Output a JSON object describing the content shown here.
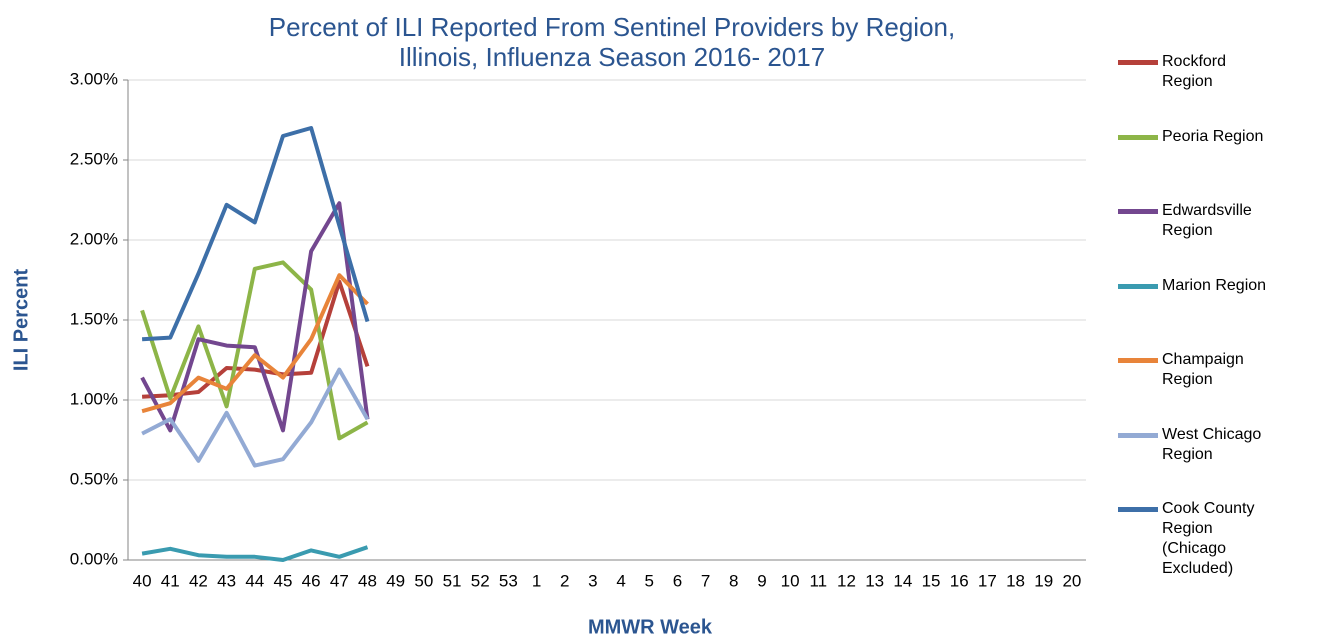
{
  "chart_data": {
    "type": "line",
    "title": "Percent of ILI Reported From Sentinel Providers by Region, Illinois, Influenza Season 2016- 2017",
    "x_label": "MMWR Week",
    "y_label": "ILI Percent",
    "categories": [
      40,
      41,
      42,
      43,
      44,
      45,
      46,
      47,
      48,
      49,
      50,
      51,
      52,
      53,
      1,
      2,
      3,
      4,
      5,
      6,
      7,
      8,
      9,
      10,
      11,
      12,
      13,
      14,
      15,
      16,
      17,
      18,
      19,
      20
    ],
    "ylim": [
      0,
      3
    ],
    "yticks": [
      {
        "value": 0,
        "label": "0.00%"
      },
      {
        "value": 0.5,
        "label": "0.50%"
      },
      {
        "value": 1,
        "label": "1.00%"
      },
      {
        "value": 1.5,
        "label": "1.50%"
      },
      {
        "value": 2,
        "label": "2.00%"
      },
      {
        "value": 2.5,
        "label": "2.50%"
      },
      {
        "value": 3,
        "label": "3.00%"
      }
    ],
    "grid": true,
    "series": [
      {
        "name": "Rockford Region",
        "color": "#b5403a",
        "values": [
          1.02,
          1.03,
          1.05,
          1.2,
          1.19,
          1.16,
          1.17,
          1.74,
          1.21,
          null,
          null,
          null,
          null,
          null,
          null,
          null,
          null,
          null,
          null,
          null,
          null,
          null,
          null,
          null,
          null,
          null,
          null,
          null,
          null,
          null,
          null,
          null,
          null,
          null
        ]
      },
      {
        "name": "Peoria Region",
        "color": "#8db548",
        "values": [
          1.56,
          1.01,
          1.46,
          0.96,
          1.82,
          1.86,
          1.69,
          0.76,
          0.86,
          null,
          null,
          null,
          null,
          null,
          null,
          null,
          null,
          null,
          null,
          null,
          null,
          null,
          null,
          null,
          null,
          null,
          null,
          null,
          null,
          null,
          null,
          null,
          null,
          null
        ]
      },
      {
        "name": "Edwardsville Region",
        "color": "#73478f",
        "values": [
          1.14,
          0.81,
          1.38,
          1.34,
          1.33,
          0.81,
          1.93,
          2.23,
          0.88,
          null,
          null,
          null,
          null,
          null,
          null,
          null,
          null,
          null,
          null,
          null,
          null,
          null,
          null,
          null,
          null,
          null,
          null,
          null,
          null,
          null,
          null,
          null,
          null,
          null
        ]
      },
      {
        "name": "Marion Region",
        "color": "#3a9bb0",
        "values": [
          0.04,
          0.07,
          0.03,
          0.02,
          0.02,
          0,
          0.06,
          0.02,
          0.08,
          null,
          null,
          null,
          null,
          null,
          null,
          null,
          null,
          null,
          null,
          null,
          null,
          null,
          null,
          null,
          null,
          null,
          null,
          null,
          null,
          null,
          null,
          null,
          null,
          null
        ]
      },
      {
        "name": "Champaign Region",
        "color": "#e8843a",
        "values": [
          0.93,
          0.98,
          1.14,
          1.07,
          1.28,
          1.14,
          1.38,
          1.78,
          1.6,
          null,
          null,
          null,
          null,
          null,
          null,
          null,
          null,
          null,
          null,
          null,
          null,
          null,
          null,
          null,
          null,
          null,
          null,
          null,
          null,
          null,
          null,
          null,
          null,
          null
        ]
      },
      {
        "name": "West Chicago Region",
        "color": "#93aad4",
        "values": [
          0.79,
          0.88,
          0.62,
          0.92,
          0.59,
          0.63,
          0.86,
          1.19,
          0.88,
          null,
          null,
          null,
          null,
          null,
          null,
          null,
          null,
          null,
          null,
          null,
          null,
          null,
          null,
          null,
          null,
          null,
          null,
          null,
          null,
          null,
          null,
          null,
          null,
          null
        ]
      },
      {
        "name": "Cook County Region (Chicago Excluded)",
        "color": "#3d6fa8",
        "values": [
          1.38,
          1.39,
          1.79,
          2.22,
          2.11,
          2.65,
          2.7,
          2.09,
          1.49,
          null,
          null,
          null,
          null,
          null,
          null,
          null,
          null,
          null,
          null,
          null,
          null,
          null,
          null,
          null,
          null,
          null,
          null,
          null,
          null,
          null,
          null,
          null,
          null,
          null
        ]
      }
    ]
  }
}
